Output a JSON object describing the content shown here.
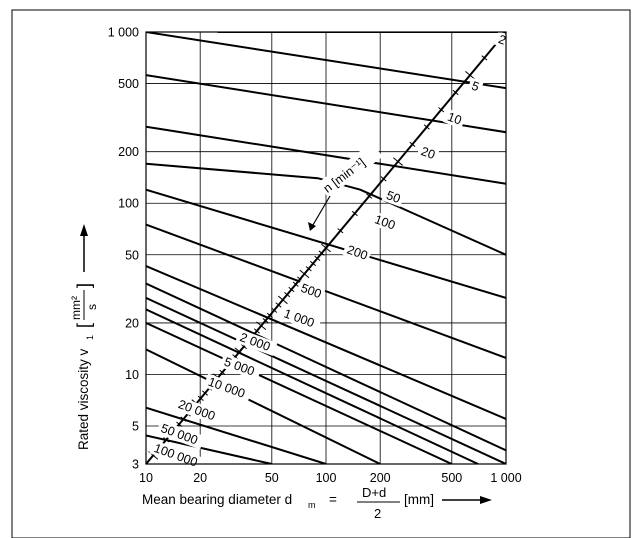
{
  "chart_data": {
    "type": "line",
    "x_scale": "log",
    "y_scale": "log",
    "xlim": [
      10,
      1000
    ],
    "ylim": [
      3,
      1000
    ],
    "grid": true,
    "x_ticks": [
      "10",
      "20",
      "50",
      "100",
      "200",
      "500",
      "1 000"
    ],
    "x_tick_values": [
      10,
      20,
      50,
      100,
      200,
      500,
      1000
    ],
    "y_ticks": [
      "3",
      "5",
      "10",
      "20",
      "50",
      "100",
      "200",
      "500",
      "1 000"
    ],
    "y_tick_values": [
      3,
      5,
      10,
      20,
      50,
      100,
      200,
      500,
      1000
    ],
    "xlabel": {
      "text": "Mean bearing diameter d",
      "subscript": "m",
      "equals": "=",
      "numerator": "D+d",
      "denominator": "2",
      "unit": "[mm]"
    },
    "ylabel": {
      "text": "Rated viscosity v",
      "subscript": "1",
      "unit_numerator": "mm²",
      "unit_denominator": "s"
    },
    "speed_axis_label": "n [min⁻¹]",
    "series": [
      {
        "name": "2",
        "label_x": 900,
        "label_y": 880,
        "points": [
          [
            25,
            1000
          ],
          [
            1000,
            1000
          ]
        ]
      },
      {
        "name": "5",
        "label_x": 640,
        "label_y": 470,
        "points": [
          [
            10,
            1000
          ],
          [
            1000,
            470
          ]
        ]
      },
      {
        "name": "10",
        "label_x": 470,
        "label_y": 310,
        "points": [
          [
            10,
            560
          ],
          [
            1000,
            260
          ]
        ]
      },
      {
        "name": "20",
        "label_x": 335,
        "label_y": 195,
        "points": [
          [
            10,
            280
          ],
          [
            1000,
            130
          ]
        ]
      },
      {
        "name": "50",
        "label_x": 215,
        "label_y": 108,
        "points": [
          [
            10,
            170
          ],
          [
            90,
            140
          ],
          [
            155,
            120
          ],
          [
            1000,
            50
          ]
        ]
      },
      {
        "name": "100",
        "label_x": 185,
        "label_y": 78,
        "points": [
          [
            10,
            120
          ],
          [
            1000,
            28
          ]
        ]
      },
      {
        "name": "200",
        "label_x": 130,
        "label_y": 52,
        "points": [
          [
            10,
            75
          ],
          [
            1000,
            12.5
          ]
        ]
      },
      {
        "name": "500",
        "label_x": 72,
        "label_y": 31,
        "points": [
          [
            10,
            43
          ],
          [
            1000,
            5.5
          ]
        ]
      },
      {
        "name": "1 000",
        "label_x": 58,
        "label_y": 22,
        "points": [
          [
            10,
            34
          ],
          [
            1000,
            3.6
          ]
        ]
      },
      {
        "name": "2 000",
        "label_x": 33,
        "label_y": 16,
        "points": [
          [
            10,
            28
          ],
          [
            1000,
            3
          ]
        ]
      },
      {
        "name": "5 000",
        "label_x": 27,
        "label_y": 11.5,
        "points": [
          [
            10,
            24
          ],
          [
            700,
            3
          ]
        ]
      },
      {
        "name": "10 000",
        "label_x": 22,
        "label_y": 8.8,
        "points": [
          [
            10,
            20
          ],
          [
            500,
            3
          ]
        ]
      },
      {
        "name": "20 000",
        "label_x": 15,
        "label_y": 6.5,
        "points": [
          [
            10,
            14
          ],
          [
            200,
            3
          ]
        ]
      },
      {
        "name": "50 000",
        "label_x": 12,
        "label_y": 4.7,
        "points": [
          [
            10,
            6.4
          ],
          [
            100,
            3
          ]
        ]
      },
      {
        "name": "100 000",
        "label_x": 11,
        "label_y": 3.6,
        "points": [
          [
            10,
            4.4
          ],
          [
            50,
            3
          ]
        ]
      }
    ],
    "diagonal_scale": {
      "points": [
        [
          10,
          3
        ],
        [
          1000,
          1000
        ]
      ]
    }
  }
}
